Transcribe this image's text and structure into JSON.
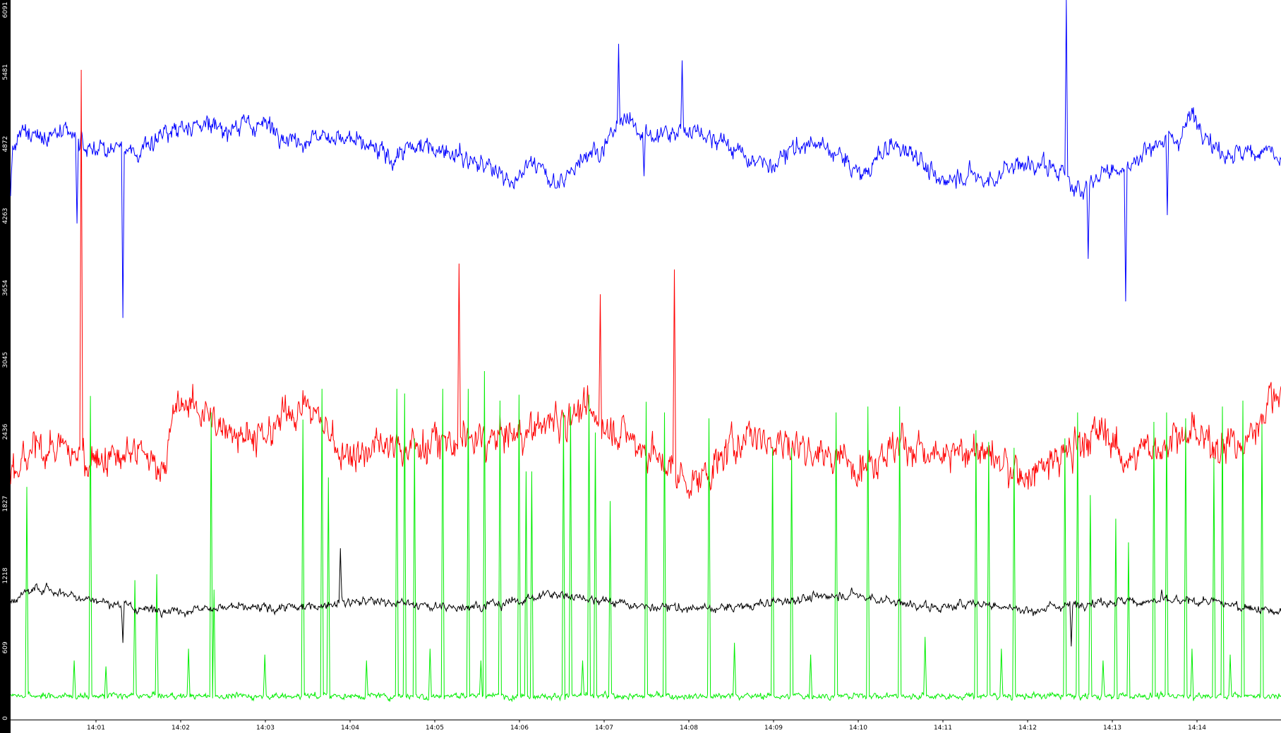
{
  "chart_data": {
    "type": "line",
    "title": "",
    "xlabel": "",
    "ylabel": "",
    "x_ticks": [
      "14:01",
      "14:02",
      "14:03",
      "14:04",
      "14:05",
      "14:06",
      "14:07",
      "14:08",
      "14:09",
      "14:10",
      "14:11",
      "14:12",
      "14:13",
      "14:14"
    ],
    "y_ticks": [
      0,
      609,
      1218,
      1827,
      2436,
      3045,
      3654,
      4263,
      4872,
      5481,
      6091
    ],
    "ylim": [
      0,
      6091
    ],
    "x_range_minutes": [
      14.0,
      15.0
    ],
    "grid": false,
    "legend": "none",
    "series_colors": [
      "#0000ff",
      "#ff0000",
      "#00ee00",
      "#000000"
    ],
    "series": [
      {
        "color": "#0000ff",
        "anchors": [
          [
            0.0,
            4400
          ],
          [
            0.001,
            4800
          ],
          [
            0.01,
            4950
          ],
          [
            0.03,
            4950
          ],
          [
            0.05,
            4920
          ],
          [
            0.06,
            4830
          ],
          [
            0.075,
            4850
          ],
          [
            0.09,
            4800
          ],
          [
            0.1,
            4780
          ],
          [
            0.11,
            4900
          ],
          [
            0.13,
            5000
          ],
          [
            0.15,
            5050
          ],
          [
            0.17,
            5000
          ],
          [
            0.2,
            5050
          ],
          [
            0.22,
            4900
          ],
          [
            0.25,
            4950
          ],
          [
            0.28,
            4850
          ],
          [
            0.3,
            4750
          ],
          [
            0.32,
            4850
          ],
          [
            0.34,
            4850
          ],
          [
            0.36,
            4750
          ],
          [
            0.38,
            4650
          ],
          [
            0.4,
            4560
          ],
          [
            0.41,
            4740
          ],
          [
            0.43,
            4500
          ],
          [
            0.45,
            4780
          ],
          [
            0.47,
            4870
          ],
          [
            0.48,
            5100
          ],
          [
            0.5,
            4950
          ],
          [
            0.52,
            4950
          ],
          [
            0.54,
            5000
          ],
          [
            0.56,
            4900
          ],
          [
            0.58,
            4750
          ],
          [
            0.6,
            4680
          ],
          [
            0.62,
            4860
          ],
          [
            0.63,
            4880
          ],
          [
            0.65,
            4800
          ],
          [
            0.67,
            4600
          ],
          [
            0.69,
            4840
          ],
          [
            0.71,
            4820
          ],
          [
            0.73,
            4540
          ],
          [
            0.75,
            4620
          ],
          [
            0.77,
            4560
          ],
          [
            0.79,
            4700
          ],
          [
            0.81,
            4700
          ],
          [
            0.83,
            4620
          ],
          [
            0.84,
            4450
          ],
          [
            0.86,
            4650
          ],
          [
            0.88,
            4650
          ],
          [
            0.9,
            4900
          ],
          [
            0.92,
            4920
          ],
          [
            0.93,
            5140
          ],
          [
            0.95,
            4820
          ],
          [
            0.97,
            4780
          ],
          [
            0.99,
            4840
          ],
          [
            1.0,
            4700
          ]
        ],
        "spikes": [
          [
            0.0523,
            4200
          ],
          [
            0.0885,
            3400
          ],
          [
            0.4784,
            5720
          ],
          [
            0.4987,
            4600
          ],
          [
            0.5287,
            5580
          ],
          [
            0.8312,
            6091
          ],
          [
            0.8485,
            3900
          ],
          [
            0.8775,
            3540
          ],
          [
            0.9105,
            4270
          ]
        ],
        "noise": 75
      },
      {
        "color": "#ff0000",
        "anchors": [
          [
            0.0,
            2000
          ],
          [
            0.02,
            2300
          ],
          [
            0.05,
            2250
          ],
          [
            0.08,
            2200
          ],
          [
            0.1,
            2250
          ],
          [
            0.12,
            2150
          ],
          [
            0.13,
            2600
          ],
          [
            0.14,
            2700
          ],
          [
            0.16,
            2500
          ],
          [
            0.18,
            2450
          ],
          [
            0.2,
            2350
          ],
          [
            0.22,
            2650
          ],
          [
            0.24,
            2600
          ],
          [
            0.26,
            2250
          ],
          [
            0.3,
            2300
          ],
          [
            0.35,
            2350
          ],
          [
            0.4,
            2400
          ],
          [
            0.43,
            2550
          ],
          [
            0.45,
            2600
          ],
          [
            0.47,
            2480
          ],
          [
            0.5,
            2300
          ],
          [
            0.52,
            2100
          ],
          [
            0.54,
            2000
          ],
          [
            0.56,
            2200
          ],
          [
            0.58,
            2450
          ],
          [
            0.6,
            2350
          ],
          [
            0.63,
            2300
          ],
          [
            0.65,
            2200
          ],
          [
            0.68,
            2200
          ],
          [
            0.7,
            2350
          ],
          [
            0.73,
            2200
          ],
          [
            0.76,
            2300
          ],
          [
            0.78,
            2150
          ],
          [
            0.8,
            2050
          ],
          [
            0.83,
            2250
          ],
          [
            0.86,
            2450
          ],
          [
            0.88,
            2200
          ],
          [
            0.92,
            2400
          ],
          [
            0.95,
            2350
          ],
          [
            0.97,
            2300
          ],
          [
            0.99,
            2700
          ],
          [
            1.0,
            2800
          ]
        ],
        "spikes": [
          [
            0.0555,
            5500
          ],
          [
            0.3532,
            3860
          ],
          [
            0.4639,
            3600
          ],
          [
            0.5226,
            3810
          ]
        ],
        "noise": 140
      },
      {
        "color": "#00ee00",
        "baseline": 200,
        "noise": 25,
        "spikes": [
          [
            0.013,
            1970
          ],
          [
            0.063,
            2740
          ],
          [
            0.098,
            1180
          ],
          [
            0.115,
            1230
          ],
          [
            0.158,
            2600
          ],
          [
            0.16,
            1100
          ],
          [
            0.23,
            2540
          ],
          [
            0.245,
            2800
          ],
          [
            0.25,
            2050
          ],
          [
            0.304,
            2800
          ],
          [
            0.31,
            2760
          ],
          [
            0.318,
            2380
          ],
          [
            0.34,
            2800
          ],
          [
            0.36,
            2800
          ],
          [
            0.373,
            2950
          ],
          [
            0.385,
            2700
          ],
          [
            0.4,
            2750
          ],
          [
            0.406,
            2100
          ],
          [
            0.41,
            2100
          ],
          [
            0.435,
            2600
          ],
          [
            0.441,
            2650
          ],
          [
            0.455,
            2750
          ],
          [
            0.46,
            2430
          ],
          [
            0.472,
            1850
          ],
          [
            0.5,
            2690
          ],
          [
            0.515,
            2600
          ],
          [
            0.55,
            2550
          ],
          [
            0.6,
            2300
          ],
          [
            0.615,
            2300
          ],
          [
            0.65,
            2600
          ],
          [
            0.675,
            2650
          ],
          [
            0.7,
            2650
          ],
          [
            0.76,
            2450
          ],
          [
            0.77,
            2350
          ],
          [
            0.79,
            2300
          ],
          [
            0.83,
            2380
          ],
          [
            0.84,
            2600
          ],
          [
            0.85,
            1900
          ],
          [
            0.87,
            1700
          ],
          [
            0.88,
            1500
          ],
          [
            0.9,
            2520
          ],
          [
            0.91,
            2600
          ],
          [
            0.925,
            2550
          ],
          [
            0.947,
            2220
          ],
          [
            0.954,
            2650
          ],
          [
            0.97,
            2700
          ],
          [
            0.985,
            2500
          ]
        ],
        "small_spikes": [
          [
            0.05,
            500
          ],
          [
            0.075,
            450
          ],
          [
            0.14,
            600
          ],
          [
            0.2,
            550
          ],
          [
            0.28,
            500
          ],
          [
            0.33,
            600
          ],
          [
            0.37,
            500
          ],
          [
            0.45,
            500
          ],
          [
            0.57,
            650
          ],
          [
            0.63,
            550
          ],
          [
            0.72,
            700
          ],
          [
            0.78,
            600
          ],
          [
            0.86,
            500
          ],
          [
            0.93,
            600
          ],
          [
            0.96,
            550
          ]
        ]
      },
      {
        "color": "#000000",
        "anchors": [
          [
            0.0,
            1000
          ],
          [
            0.02,
            1120
          ],
          [
            0.05,
            1050
          ],
          [
            0.08,
            980
          ],
          [
            0.1,
            940
          ],
          [
            0.13,
            920
          ],
          [
            0.16,
            950
          ],
          [
            0.2,
            940
          ],
          [
            0.23,
            950
          ],
          [
            0.26,
            1000
          ],
          [
            0.3,
            1000
          ],
          [
            0.33,
            950
          ],
          [
            0.36,
            960
          ],
          [
            0.4,
            1000
          ],
          [
            0.42,
            1060
          ],
          [
            0.45,
            1040
          ],
          [
            0.5,
            950
          ],
          [
            0.55,
            940
          ],
          [
            0.58,
            960
          ],
          [
            0.62,
            1020
          ],
          [
            0.66,
            1060
          ],
          [
            0.7,
            990
          ],
          [
            0.73,
            940
          ],
          [
            0.76,
            990
          ],
          [
            0.8,
            920
          ],
          [
            0.83,
            970
          ],
          [
            0.86,
            1000
          ],
          [
            0.9,
            1000
          ],
          [
            0.94,
            1000
          ],
          [
            0.97,
            960
          ],
          [
            1.0,
            900
          ]
        ],
        "spikes": [
          [
            0.2595,
            1450
          ],
          [
            0.0885,
            650
          ],
          [
            0.835,
            620
          ],
          [
            0.906,
            1100
          ]
        ],
        "noise": 35
      }
    ]
  }
}
